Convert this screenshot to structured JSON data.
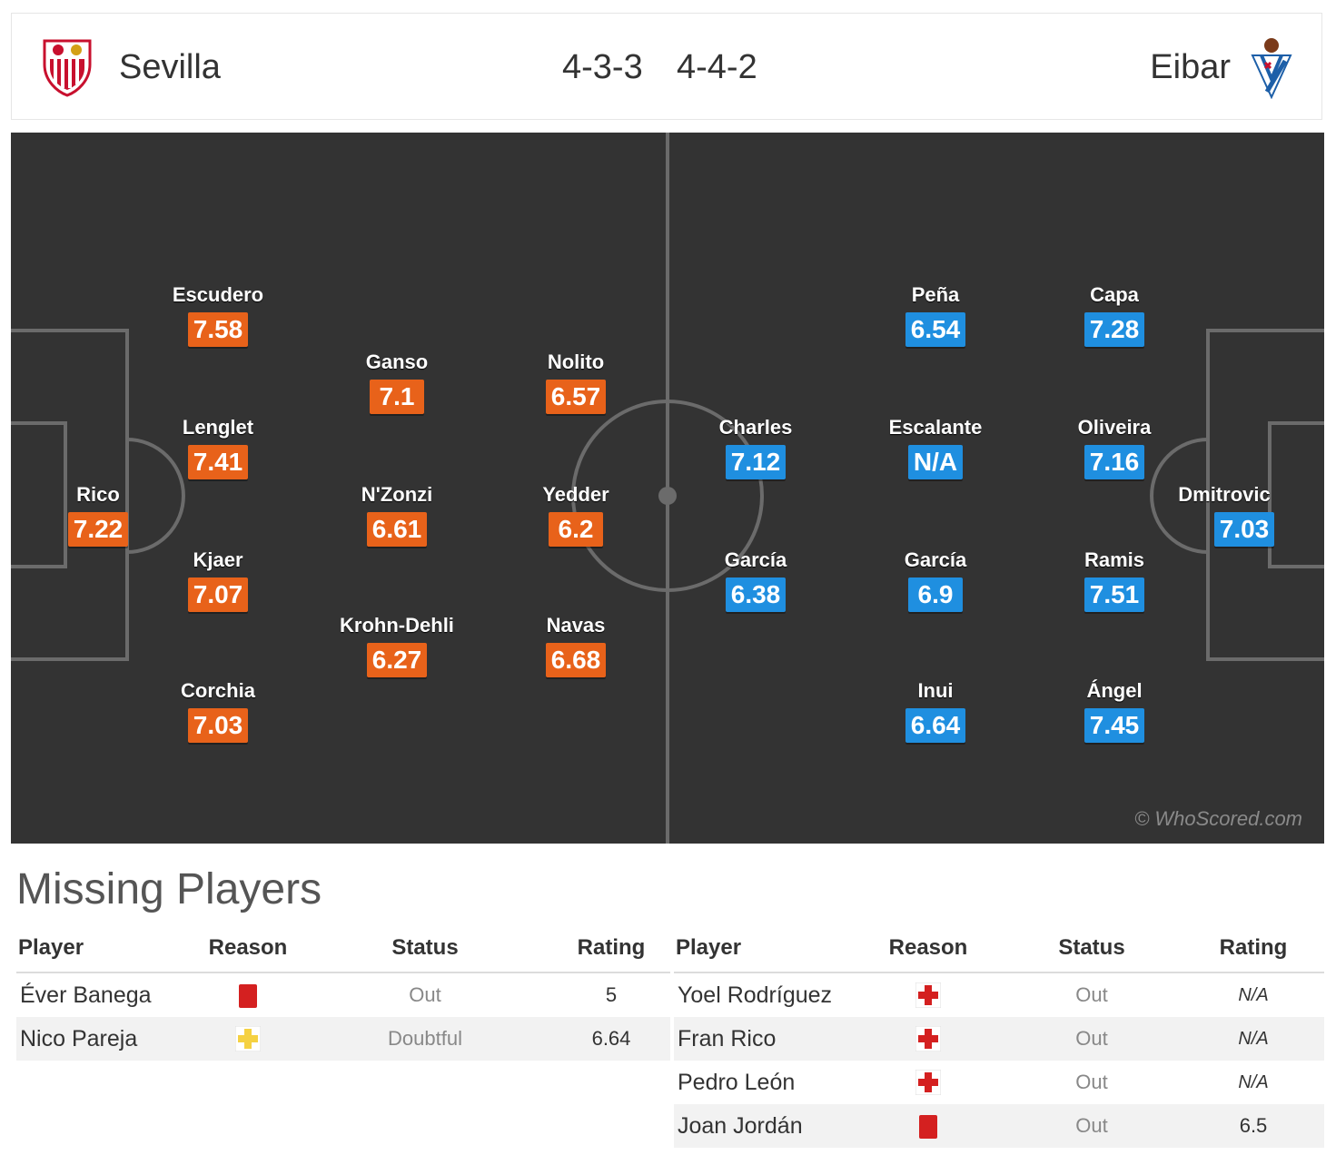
{
  "header": {
    "home_team": "Sevilla",
    "away_team": "Eibar",
    "home_formation": "4-3-3",
    "away_formation": "4-4-2"
  },
  "colors": {
    "home_rating": "#e8621a",
    "away_rating": "#1f8fe0",
    "pitch": "#333333"
  },
  "pitch": {
    "watermark": "© WhoScored.com",
    "home_players": [
      {
        "name": "Escudero",
        "rating": "7.58"
      },
      {
        "name": "Ganso",
        "rating": "7.1"
      },
      {
        "name": "Nolito",
        "rating": "6.57"
      },
      {
        "name": "Lenglet",
        "rating": "7.41"
      },
      {
        "name": "Rico",
        "rating": "7.22"
      },
      {
        "name": "N'Zonzi",
        "rating": "6.61"
      },
      {
        "name": "Yedder",
        "rating": "6.2"
      },
      {
        "name": "Kjaer",
        "rating": "7.07"
      },
      {
        "name": "Krohn-Dehli",
        "rating": "6.27"
      },
      {
        "name": "Navas",
        "rating": "6.68"
      },
      {
        "name": "Corchia",
        "rating": "7.03"
      }
    ],
    "away_players": [
      {
        "name": "Peña",
        "rating": "6.54"
      },
      {
        "name": "Capa",
        "rating": "7.28"
      },
      {
        "name": "Charles",
        "rating": "7.12"
      },
      {
        "name": "Escalante",
        "rating": "N/A"
      },
      {
        "name": "Oliveira",
        "rating": "7.16"
      },
      {
        "name": "Dmitrovic",
        "rating": "7.03"
      },
      {
        "name": "García",
        "rating": "6.38"
      },
      {
        "name": "García",
        "rating": "6.9"
      },
      {
        "name": "Ramis",
        "rating": "7.51"
      },
      {
        "name": "Inui",
        "rating": "6.64"
      },
      {
        "name": "Ángel",
        "rating": "7.45"
      }
    ]
  },
  "missing": {
    "title": "Missing Players",
    "headers": {
      "player": "Player",
      "reason": "Reason",
      "status": "Status",
      "rating": "Rating"
    },
    "home": [
      {
        "player": "Éver Banega",
        "reason": "red-card-icon",
        "status": "Out",
        "rating": "5"
      },
      {
        "player": "Nico Pareja",
        "reason": "doubtful-injury-icon",
        "status": "Doubtful",
        "rating": "6.64"
      }
    ],
    "away": [
      {
        "player": "Yoel Rodríguez",
        "reason": "injury-icon",
        "status": "Out",
        "rating": "N/A"
      },
      {
        "player": "Fran Rico",
        "reason": "injury-icon",
        "status": "Out",
        "rating": "N/A"
      },
      {
        "player": "Pedro León",
        "reason": "injury-icon",
        "status": "Out",
        "rating": "N/A"
      },
      {
        "player": "Joan Jordán",
        "reason": "red-card-icon",
        "status": "Out",
        "rating": "6.5"
      }
    ]
  }
}
